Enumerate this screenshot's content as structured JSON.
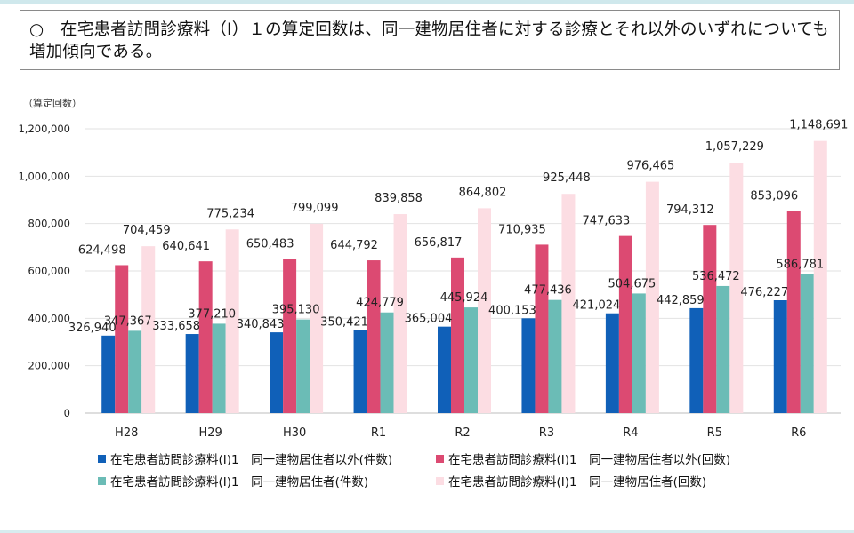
{
  "header": {
    "text": "○　在宅患者訪問診療料（Ⅰ）１の算定回数は、同一建物居住者に対する診療とそれ以外のいずれについても増加傾向である。"
  },
  "chart_data": {
    "type": "bar",
    "unit_label": "（算定回数）",
    "ylim": [
      0,
      1200000
    ],
    "yticks": [
      "0",
      "200,000",
      "400,000",
      "600,000",
      "800,000",
      "1,000,000",
      "1,200,000"
    ],
    "grid": true,
    "legend_position": "bottom",
    "categories": [
      "H28",
      "H29",
      "H30",
      "R1",
      "R2",
      "R3",
      "R4",
      "R5",
      "R6"
    ],
    "series": [
      {
        "name": "在宅患者訪問診療料(Ⅰ)1　同一建物居住者以外(件数)",
        "color": "#1060b8",
        "values": [
          326940,
          333658,
          340843,
          350421,
          365004,
          400153,
          421024,
          442859,
          476227
        ],
        "labels": [
          "326,940",
          "333,658",
          "340,843",
          "350,421",
          "365,004",
          "400,153",
          "421,024",
          "442,859",
          "476,227"
        ]
      },
      {
        "name": "在宅患者訪問診療料(Ⅰ)1　同一建物居住者以外(回数)",
        "color": "#dc4a72",
        "values": [
          624498,
          640641,
          650483,
          644792,
          656817,
          710935,
          747633,
          794312,
          853096
        ],
        "labels": [
          "624,498",
          "640,641",
          "650,483",
          "644,792",
          "656,817",
          "710,935",
          "747,633",
          "794,312",
          "853,096"
        ]
      },
      {
        "name": "在宅患者訪問診療料(Ⅰ)1　同一建物居住者(件数)",
        "color": "#6bbcb6",
        "values": [
          347367,
          377210,
          395130,
          424779,
          445924,
          477436,
          504675,
          536472,
          586781
        ],
        "labels": [
          "347,367",
          "377,210",
          "395,130",
          "424,779",
          "445,924",
          "477,436",
          "504,675",
          "536,472",
          "586,781"
        ]
      },
      {
        "name": "在宅患者訪問診療料(Ⅰ)1　同一建物居住者(回数)",
        "color": "#fcdde3",
        "values": [
          704459,
          775234,
          799099,
          839858,
          864802,
          925448,
          976465,
          1057229,
          1148691
        ],
        "labels": [
          "704,459",
          "775,234",
          "799,099",
          "839,858",
          "864,802",
          "925,448",
          "976,465",
          "1,057,229",
          "1,148,691"
        ]
      }
    ]
  }
}
